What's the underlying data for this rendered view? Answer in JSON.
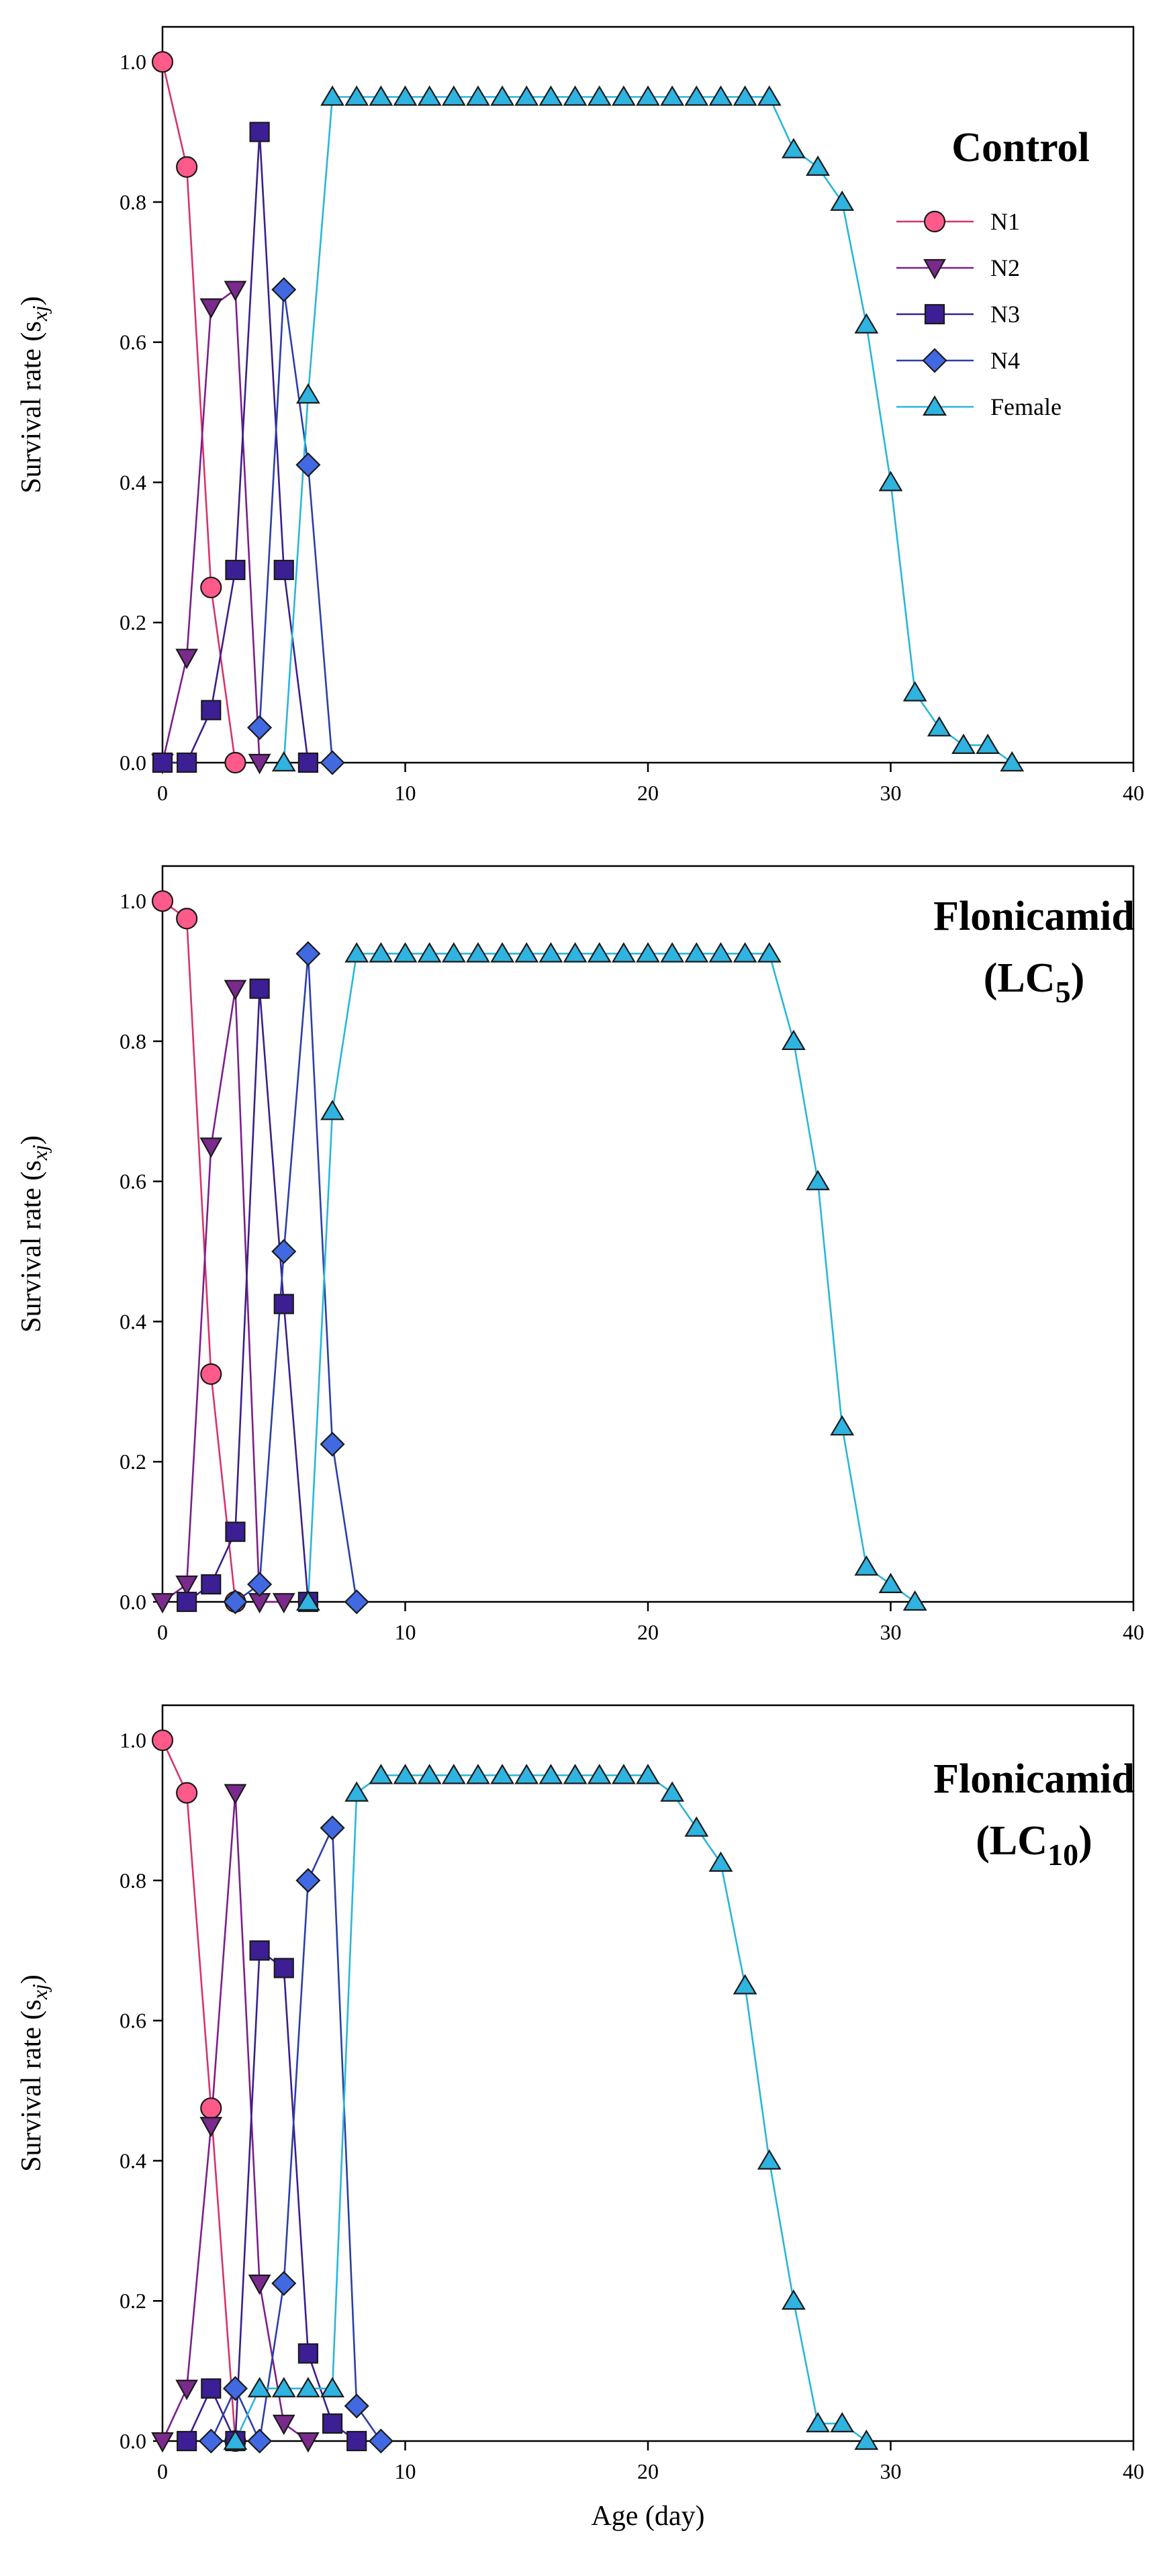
{
  "chart_data": [
    {
      "type": "line",
      "title": "Control",
      "title_sub": "",
      "xlabel": "",
      "ylabel": "Survival rate (s",
      "ylabel_sub": "xj",
      "ylabel_end": ")",
      "xlim": [
        0,
        40
      ],
      "ylim": [
        0,
        1.05
      ],
      "xticks": [
        0,
        10,
        20,
        30,
        40
      ],
      "yticks": [
        0.0,
        0.2,
        0.4,
        0.6,
        0.8,
        1.0
      ],
      "xtick_labels": [
        "0",
        "10",
        "20",
        "30",
        "40"
      ],
      "ytick_labels": [
        "0.0",
        "0.2",
        "0.4",
        "0.6",
        "0.8",
        "1.0"
      ],
      "legend": true,
      "legend_position": "top-right",
      "series": [
        {
          "name": "N1",
          "marker": "circle",
          "color": "#d6336c",
          "fill": "#ff5a8a",
          "x": [
            0,
            1,
            2,
            3
          ],
          "y": [
            1.0,
            0.85,
            0.25,
            0.0
          ]
        },
        {
          "name": "N2",
          "marker": "triangle-down",
          "color": "#7a1f8a",
          "fill": "#7a2a8c",
          "x": [
            0,
            1,
            2,
            3,
            4
          ],
          "y": [
            0.0,
            0.15,
            0.65,
            0.675,
            0.0
          ]
        },
        {
          "name": "N3",
          "marker": "square",
          "color": "#3a1f8a",
          "fill": "#3c1f94",
          "x": [
            0,
            1,
            2,
            3,
            4,
            5,
            6
          ],
          "y": [
            0.0,
            0.0,
            0.075,
            0.275,
            0.9,
            0.275,
            0.0
          ]
        },
        {
          "name": "N4",
          "marker": "diamond",
          "color": "#2b3fa6",
          "fill": "#4169e1",
          "x": [
            4,
            5,
            6,
            7
          ],
          "y": [
            0.05,
            0.675,
            0.425,
            0.0
          ]
        },
        {
          "name": "Female",
          "marker": "triangle-up",
          "color": "#29b6d9",
          "fill": "#2fb3e0",
          "x": [
            5,
            6,
            7,
            8,
            9,
            10,
            11,
            12,
            13,
            14,
            15,
            16,
            17,
            18,
            19,
            20,
            21,
            22,
            23,
            24,
            25,
            26,
            27,
            28,
            29,
            30,
            31,
            32,
            33,
            34,
            35
          ],
          "y": [
            0.0,
            0.525,
            0.95,
            0.95,
            0.95,
            0.95,
            0.95,
            0.95,
            0.95,
            0.95,
            0.95,
            0.95,
            0.95,
            0.95,
            0.95,
            0.95,
            0.95,
            0.95,
            0.95,
            0.95,
            0.95,
            0.875,
            0.85,
            0.8,
            0.625,
            0.4,
            0.1,
            0.05,
            0.025,
            0.025,
            0.0
          ]
        }
      ]
    },
    {
      "type": "line",
      "title": "Flonicamid",
      "title_line2": "(LC",
      "title_sub": "5",
      "title_end": ")",
      "xlabel": "",
      "ylabel": "Survival rate (s",
      "ylabel_sub": "xj",
      "ylabel_end": ")",
      "xlim": [
        0,
        40
      ],
      "ylim": [
        0,
        1.05
      ],
      "xticks": [
        0,
        10,
        20,
        30,
        40
      ],
      "yticks": [
        0.0,
        0.2,
        0.4,
        0.6,
        0.8,
        1.0
      ],
      "xtick_labels": [
        "0",
        "10",
        "20",
        "30",
        "40"
      ],
      "ytick_labels": [
        "0.0",
        "0.2",
        "0.4",
        "0.6",
        "0.8",
        "1.0"
      ],
      "legend": false,
      "series": [
        {
          "name": "N1",
          "marker": "circle",
          "color": "#d6336c",
          "fill": "#ff5a8a",
          "x": [
            0,
            1,
            2,
            3
          ],
          "y": [
            1.0,
            0.975,
            0.325,
            0.0
          ]
        },
        {
          "name": "N2",
          "marker": "triangle-down",
          "color": "#7a1f8a",
          "fill": "#7a2a8c",
          "x": [
            0,
            1,
            2,
            3,
            4,
            5
          ],
          "y": [
            0.0,
            0.025,
            0.65,
            0.875,
            0.0,
            0.0
          ]
        },
        {
          "name": "N3",
          "marker": "square",
          "color": "#3a1f8a",
          "fill": "#3c1f94",
          "x": [
            1,
            2,
            3,
            4,
            5,
            6
          ],
          "y": [
            0.0,
            0.025,
            0.1,
            0.875,
            0.425,
            0.0
          ]
        },
        {
          "name": "N4",
          "marker": "diamond",
          "color": "#2b3fa6",
          "fill": "#4169e1",
          "x": [
            3,
            4,
            5,
            6,
            7,
            8
          ],
          "y": [
            0.0,
            0.025,
            0.5,
            0.925,
            0.225,
            0.0
          ]
        },
        {
          "name": "Female",
          "marker": "triangle-up",
          "color": "#29b6d9",
          "fill": "#2fb3e0",
          "x": [
            6,
            7,
            8,
            9,
            10,
            11,
            12,
            13,
            14,
            15,
            16,
            17,
            18,
            19,
            20,
            21,
            22,
            23,
            24,
            25,
            26,
            27,
            28,
            29,
            30,
            31
          ],
          "y": [
            0.0,
            0.7,
            0.925,
            0.925,
            0.925,
            0.925,
            0.925,
            0.925,
            0.925,
            0.925,
            0.925,
            0.925,
            0.925,
            0.925,
            0.925,
            0.925,
            0.925,
            0.925,
            0.925,
            0.925,
            0.8,
            0.6,
            0.25,
            0.05,
            0.025,
            0.0
          ]
        }
      ]
    },
    {
      "type": "line",
      "title": "Flonicamid",
      "title_line2": "(LC",
      "title_sub": "10",
      "title_end": ")",
      "xlabel": "Age (day)",
      "ylabel": "Survival rate (s",
      "ylabel_sub": "xj",
      "ylabel_end": ")",
      "xlim": [
        0,
        40
      ],
      "ylim": [
        0,
        1.05
      ],
      "xticks": [
        0,
        10,
        20,
        30,
        40
      ],
      "yticks": [
        0.0,
        0.2,
        0.4,
        0.6,
        0.8,
        1.0
      ],
      "xtick_labels": [
        "0",
        "10",
        "20",
        "30",
        "40"
      ],
      "ytick_labels": [
        "0.0",
        "0.2",
        "0.4",
        "0.6",
        "0.8",
        "1.0"
      ],
      "legend": false,
      "series": [
        {
          "name": "N1",
          "marker": "circle",
          "color": "#d6336c",
          "fill": "#ff5a8a",
          "x": [
            0,
            1,
            2,
            3
          ],
          "y": [
            1.0,
            0.925,
            0.475,
            0.0
          ]
        },
        {
          "name": "N2",
          "marker": "triangle-down",
          "color": "#7a1f8a",
          "fill": "#7a2a8c",
          "x": [
            0,
            1,
            2,
            3,
            4,
            5,
            6
          ],
          "y": [
            0.0,
            0.075,
            0.45,
            0.925,
            0.225,
            0.025,
            0.0
          ]
        },
        {
          "name": "N3",
          "marker": "square",
          "color": "#3a1f8a",
          "fill": "#3c1f94",
          "x": [
            1,
            2,
            3,
            4,
            5,
            6,
            7,
            8
          ],
          "y": [
            0.0,
            0.075,
            0.0,
            0.7,
            0.675,
            0.125,
            0.025,
            0.0
          ]
        },
        {
          "name": "N4",
          "marker": "diamond",
          "color": "#2b3fa6",
          "fill": "#4169e1",
          "x": [
            2,
            3,
            4,
            5,
            6,
            7,
            8,
            9
          ],
          "y": [
            0.0,
            0.075,
            0.0,
            0.225,
            0.8,
            0.875,
            0.05,
            0.0
          ]
        },
        {
          "name": "Female",
          "marker": "triangle-up",
          "color": "#29b6d9",
          "fill": "#2fb3e0",
          "x": [
            3,
            4,
            5,
            6,
            7,
            8,
            9,
            10,
            11,
            12,
            13,
            14,
            15,
            16,
            17,
            18,
            19,
            20,
            21,
            22,
            23,
            24,
            25,
            26,
            27,
            28,
            29
          ],
          "y": [
            0.0,
            0.075,
            0.075,
            0.075,
            0.075,
            0.925,
            0.95,
            0.95,
            0.95,
            0.95,
            0.95,
            0.95,
            0.95,
            0.95,
            0.95,
            0.95,
            0.95,
            0.95,
            0.925,
            0.875,
            0.825,
            0.65,
            0.4,
            0.2,
            0.025,
            0.025,
            0.0
          ]
        }
      ]
    }
  ]
}
